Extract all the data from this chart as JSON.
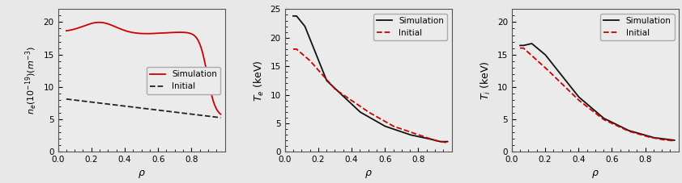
{
  "plot1": {
    "ylabel": "$n_e(10^{-19})(m^{-3})$",
    "xlabel": "$\\rho$",
    "ylim": [
      0,
      22
    ],
    "xlim": [
      0,
      1.0
    ],
    "yticks": [
      0.0,
      5.0,
      10.0,
      15.0,
      20.0
    ],
    "xticks": [
      0,
      0.2,
      0.4,
      0.6,
      0.8
    ],
    "sim_color": "#cc0000",
    "init_color": "#222222",
    "sim_style": "-",
    "init_style": "--",
    "legend_loc": "center right"
  },
  "plot2": {
    "ylabel": "$T_e$ (keV)",
    "xlabel": "$\\rho$",
    "ylim": [
      0,
      25
    ],
    "xlim": [
      0,
      1.0
    ],
    "yticks": [
      0.0,
      5.0,
      10.0,
      15.0,
      20.0,
      25.0
    ],
    "xticks": [
      0,
      0.2,
      0.4,
      0.6,
      0.8
    ],
    "sim_color": "#111111",
    "init_color": "#cc0000",
    "sim_style": "-",
    "init_style": "--",
    "legend_loc": "upper right"
  },
  "plot3": {
    "ylabel": "$T_i$ (keV)",
    "xlabel": "$\\rho$",
    "ylim": [
      0,
      22
    ],
    "xlim": [
      0,
      1.0
    ],
    "yticks": [
      0.0,
      5.0,
      10.0,
      15.0,
      20.0
    ],
    "xticks": [
      0,
      0.2,
      0.4,
      0.6,
      0.8
    ],
    "sim_color": "#111111",
    "init_color": "#cc0000",
    "sim_style": "-",
    "init_style": "--",
    "legend_loc": "upper right"
  },
  "legend_sim": "Simulation",
  "legend_init": "Initial",
  "fig_bg": "#e8e8e8"
}
